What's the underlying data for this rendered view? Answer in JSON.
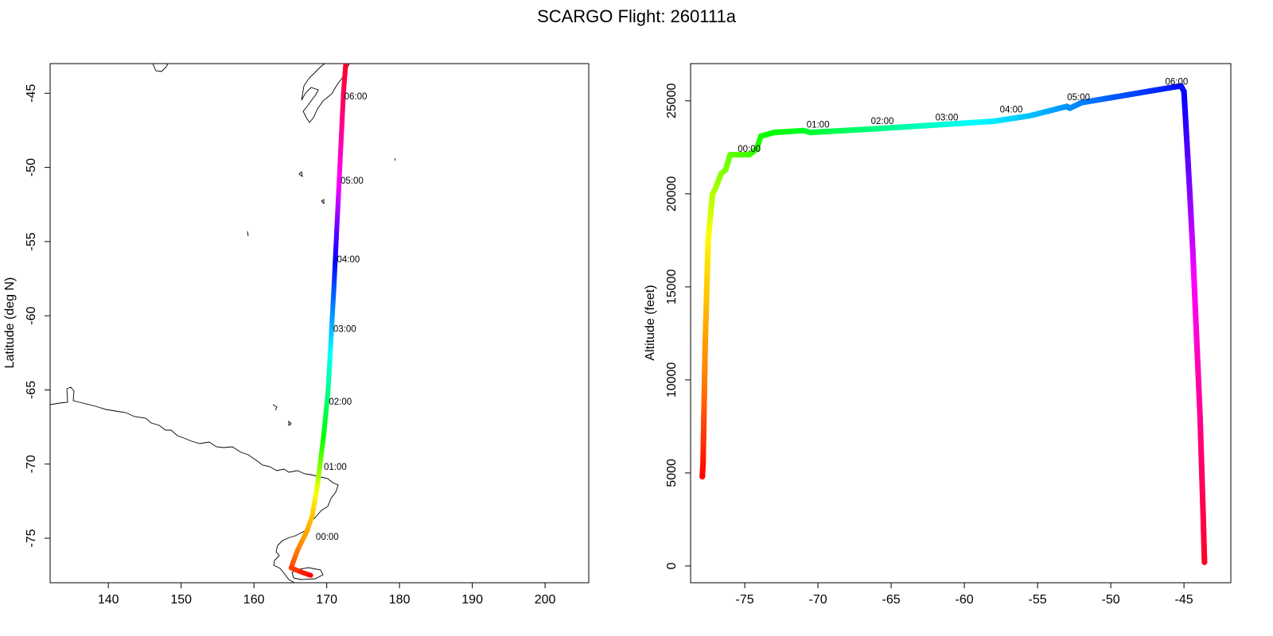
{
  "title": "SCARGO Flight: 260111a",
  "chart_data": [
    {
      "type": "line",
      "panel": "map",
      "xlabel": "",
      "ylabel": "Latitude (deg N)",
      "xlim": [
        132,
        206
      ],
      "ylim": [
        -78,
        -43
      ],
      "xticks": [
        140,
        150,
        160,
        170,
        180,
        190,
        200
      ],
      "yticks": [
        -45,
        -50,
        -55,
        -60,
        -65,
        -70,
        -75
      ],
      "grid": false,
      "color_scale": "rainbow by time (red → orange → yellow → green → cyan → blue → magenta → red)",
      "track": {
        "x": [
          167.8,
          166.6,
          165.1,
          166.0,
          167.3,
          168.0,
          168.7,
          169.6,
          170.2,
          170.6,
          171.0,
          171.4,
          171.8,
          172.1,
          172.3,
          172.6
        ],
        "y": [
          -77.5,
          -77.3,
          -77.0,
          -75.8,
          -74.5,
          -73.5,
          -71.5,
          -68.0,
          -65.0,
          -61.5,
          -58.0,
          -54.0,
          -50.0,
          -47.0,
          -45.0,
          -43.1
        ]
      },
      "time_labels": [
        {
          "text": "00:00",
          "lon": 168.5,
          "lat": -75.1
        },
        {
          "text": "01:00",
          "lon": 169.6,
          "lat": -70.4
        },
        {
          "text": "02:00",
          "lon": 170.3,
          "lat": -66.0
        },
        {
          "text": "03:00",
          "lon": 170.9,
          "lat": -61.1
        },
        {
          "text": "04:00",
          "lon": 171.4,
          "lat": -56.4
        },
        {
          "text": "05:00",
          "lon": 171.9,
          "lat": -51.1
        },
        {
          "text": "06:00",
          "lon": 172.4,
          "lat": -45.4
        }
      ]
    },
    {
      "type": "line",
      "panel": "altitude",
      "xlabel": "",
      "ylabel": "Altitude (feet)",
      "xlim": [
        -78.7,
        -41.8
      ],
      "ylim": [
        -900,
        27000
      ],
      "xticks": [
        -75,
        -70,
        -65,
        -60,
        -55,
        -50,
        -45
      ],
      "yticks": [
        0,
        5000,
        10000,
        15000,
        20000,
        25000
      ],
      "grid": false,
      "series": [
        {
          "x": [
            -77.9,
            -77.85,
            -77.7,
            -77.5,
            -77.2,
            -77.0,
            -76.6,
            -76.3,
            -76.0,
            -75.5,
            -74.7,
            -74.2,
            -73.9,
            -73.0,
            -71.0,
            -70.5,
            -66.0,
            -62.0,
            -58.0,
            -55.5,
            -53.0,
            -52.8,
            -52.0,
            -49.0,
            -46.0,
            -45.2,
            -45.0,
            -44.6,
            -44.4,
            -43.9,
            -43.7,
            -43.6
          ],
          "y": [
            4800,
            5500,
            12000,
            17500,
            20000,
            20300,
            21100,
            21300,
            22100,
            22100,
            22100,
            22400,
            23100,
            23300,
            23400,
            23300,
            23500,
            23700,
            23900,
            24200,
            24700,
            24600,
            24900,
            25300,
            25700,
            25800,
            25500,
            20000,
            17000,
            8000,
            3000,
            200
          ]
        }
      ],
      "time_labels": [
        {
          "text": "00:00",
          "x": -74.7,
          "y": 22250
        },
        {
          "text": "01:00",
          "x": -70.0,
          "y": 23550
        },
        {
          "text": "02:00",
          "x": -65.6,
          "y": 23760
        },
        {
          "text": "03:00",
          "x": -61.2,
          "y": 23950
        },
        {
          "text": "04:00",
          "x": -56.8,
          "y": 24370
        },
        {
          "text": "05:00",
          "x": -52.2,
          "y": 25040
        },
        {
          "text": "06:00",
          "x": -45.5,
          "y": 25860
        }
      ]
    }
  ]
}
